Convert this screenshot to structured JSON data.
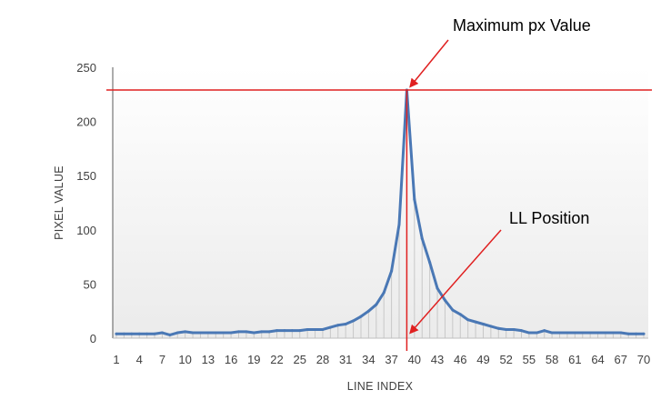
{
  "chart_data": {
    "type": "line",
    "xlabel": "LINE INDEX",
    "ylabel": "PIXEL VALUE",
    "ylim": [
      0,
      250
    ],
    "yticks": [
      0,
      50,
      100,
      150,
      200,
      250
    ],
    "x_tick_labels": [
      "1",
      "4",
      "7",
      "10",
      "13",
      "16",
      "19",
      "22",
      "25",
      "28",
      "31",
      "34",
      "37",
      "40",
      "43",
      "46",
      "49",
      "52",
      "55",
      "58",
      "61",
      "64",
      "67",
      "70"
    ],
    "grid": false,
    "legend": "none",
    "series": [
      {
        "color": "#4a78b5",
        "x": [
          1,
          2,
          3,
          4,
          5,
          6,
          7,
          8,
          9,
          10,
          11,
          12,
          13,
          14,
          15,
          16,
          17,
          18,
          19,
          20,
          21,
          22,
          23,
          24,
          25,
          26,
          27,
          28,
          29,
          30,
          31,
          32,
          33,
          34,
          35,
          36,
          37,
          38,
          39,
          40,
          41,
          42,
          43,
          44,
          45,
          46,
          47,
          48,
          49,
          50,
          51,
          52,
          53,
          54,
          55,
          56,
          57,
          58,
          59,
          60,
          61,
          62,
          63,
          64,
          65,
          66,
          67,
          68,
          69,
          70
        ],
        "values": [
          4,
          4,
          4,
          4,
          4,
          4,
          5,
          3,
          5,
          6,
          5,
          5,
          5,
          5,
          5,
          5,
          6,
          6,
          5,
          6,
          6,
          7,
          7,
          7,
          7,
          8,
          8,
          8,
          10,
          12,
          13,
          16,
          20,
          25,
          31,
          42,
          62,
          105,
          229,
          128,
          92,
          70,
          46,
          35,
          26,
          22,
          17,
          15,
          13,
          11,
          9,
          8,
          8,
          7,
          5,
          5,
          7,
          5,
          5,
          5,
          5,
          5,
          5,
          5,
          5,
          5,
          5,
          4,
          4,
          4
        ]
      }
    ],
    "annotations": [
      {
        "text": "Maximum px Value",
        "color": "#000000",
        "arrow_color": "#e02020",
        "target_x": 39,
        "target_y": 229
      },
      {
        "text": "LL Position",
        "color": "#000000",
        "arrow_color": "#e02020",
        "target_x": 39,
        "target_y": 0
      }
    ],
    "reference_lines": {
      "horizontal_y": 229,
      "vertical_x": 39,
      "color": "#e02020"
    },
    "drop_lines_color": "#c8c8c8",
    "background_gradient": [
      "#ffffff",
      "#ebebeb"
    ]
  }
}
